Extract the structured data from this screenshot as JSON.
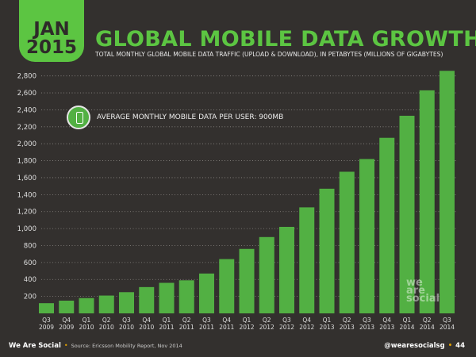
{
  "badge": {
    "month": "JAN",
    "year": "2015"
  },
  "title": "GLOBAL MOBILE DATA GROWTH",
  "subtitle": "TOTAL MONTHLY GLOBAL MOBILE DATA TRAFFIC (UPLOAD & DOWNLOAD), IN PETABYTES (MILLIONS OF GIGABYTES)",
  "annotation": {
    "text": "AVERAGE MONTHLY MOBILE DATA PER USER: 900MB",
    "icon": "smartphone-globe-icon"
  },
  "watermark": "we are social",
  "footer": {
    "brand": "We Are Social",
    "source": "Source: Ericsson Mobility Report, Nov 2014",
    "handle": "@wearesocialsg",
    "page": "44"
  },
  "colors": {
    "background": "#33302e",
    "bar": "#52b043",
    "accent": "#5cc542",
    "separator": "#e2a000"
  },
  "chart_data": {
    "type": "bar",
    "title": "GLOBAL MOBILE DATA GROWTH",
    "ylim": [
      0,
      2900
    ],
    "yticks": [
      200,
      400,
      600,
      800,
      1000,
      1200,
      1400,
      1600,
      1800,
      2000,
      2200,
      2400,
      2600,
      2800
    ],
    "ytick_labels": [
      "200",
      "400",
      "600",
      "800",
      "1,000",
      "1,200",
      "1,400",
      "1,600",
      "1,800",
      "2,000",
      "2,200",
      "2,400",
      "2,600",
      "2,800"
    ],
    "grid": true,
    "categories": [
      [
        "Q3",
        "2009"
      ],
      [
        "Q4",
        "2009"
      ],
      [
        "Q1",
        "2010"
      ],
      [
        "Q2",
        "2010"
      ],
      [
        "Q3",
        "2010"
      ],
      [
        "Q4",
        "2010"
      ],
      [
        "Q1",
        "2011"
      ],
      [
        "Q2",
        "2011"
      ],
      [
        "Q3",
        "2011"
      ],
      [
        "Q4",
        "2011"
      ],
      [
        "Q1",
        "2012"
      ],
      [
        "Q2",
        "2012"
      ],
      [
        "Q3",
        "2012"
      ],
      [
        "Q4",
        "2012"
      ],
      [
        "Q1",
        "2013"
      ],
      [
        "Q2",
        "2013"
      ],
      [
        "Q3",
        "2013"
      ],
      [
        "Q4",
        "2013"
      ],
      [
        "Q1",
        "2014"
      ],
      [
        "Q2",
        "2014"
      ],
      [
        "Q3",
        "2014"
      ]
    ],
    "values": [
      120,
      150,
      180,
      210,
      250,
      310,
      360,
      390,
      470,
      640,
      760,
      900,
      1020,
      1250,
      1470,
      1670,
      1820,
      2070,
      2330,
      2630,
      2860
    ]
  }
}
